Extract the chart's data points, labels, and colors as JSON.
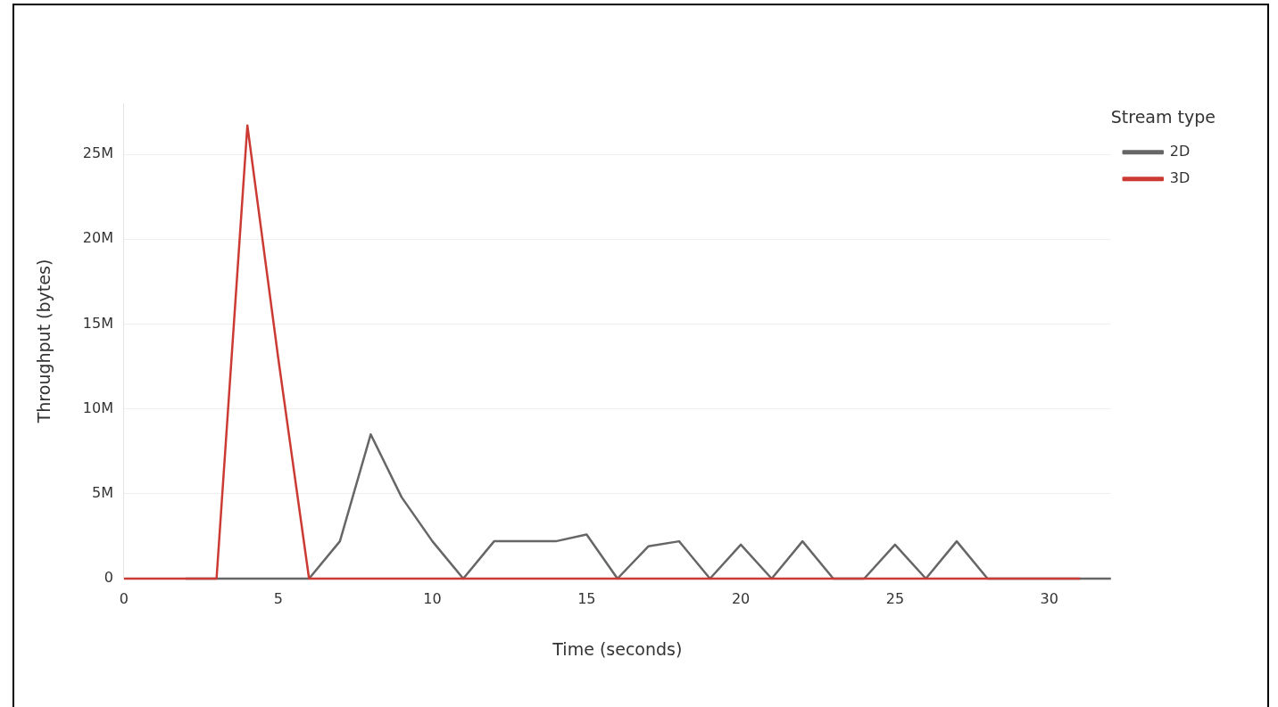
{
  "chart_data": {
    "type": "line",
    "xlabel": "Time (seconds)",
    "ylabel": "Throughput (bytes)",
    "legend_title": "Stream type",
    "series": [
      {
        "name": "2D",
        "color": "#666666",
        "x": [
          2,
          3,
          4,
          5,
          6,
          7,
          8,
          9,
          10,
          11,
          12,
          13,
          14,
          15,
          16,
          17,
          18,
          19,
          20,
          21,
          22,
          23,
          24,
          25,
          26,
          27,
          28,
          29,
          30,
          31,
          32
        ],
        "values": [
          0,
          0,
          0,
          0,
          0,
          2200000,
          8500000,
          4800000,
          2200000,
          0,
          2200000,
          2200000,
          2200000,
          2600000,
          0,
          1900000,
          2200000,
          0,
          2000000,
          0,
          2200000,
          0,
          0,
          2000000,
          0,
          2200000,
          0,
          0,
          0,
          0,
          0
        ]
      },
      {
        "name": "3D",
        "color": "#cc3b33",
        "x": [
          0,
          1,
          2,
          3,
          4,
          5,
          6,
          7,
          8,
          9,
          10,
          11,
          12,
          13,
          14,
          15,
          16,
          17,
          18,
          19,
          20,
          21,
          22,
          23,
          24,
          25,
          26,
          27,
          28,
          29,
          30,
          31
        ],
        "values": [
          0,
          0,
          0,
          0,
          26700000,
          13000000,
          0,
          0,
          0,
          0,
          0,
          0,
          0,
          0,
          0,
          0,
          0,
          0,
          0,
          0,
          0,
          0,
          0,
          0,
          0,
          0,
          0,
          0,
          0,
          0,
          0,
          0
        ]
      }
    ],
    "xlim": [
      0,
      32
    ],
    "xticks": [
      0,
      5,
      10,
      15,
      20,
      25,
      30
    ],
    "ylim": [
      0,
      28000000
    ],
    "yticks": [
      0,
      {
        "value": 5000000,
        "label": "5M"
      },
      {
        "value": 10000000,
        "label": "10M"
      },
      {
        "value": 15000000,
        "label": "15M"
      },
      {
        "value": 20000000,
        "label": "20M"
      },
      {
        "value": 25000000,
        "label": "25M"
      }
    ],
    "grid": "y",
    "legend": "right",
    "marker": "none",
    "line_style": "solid"
  }
}
